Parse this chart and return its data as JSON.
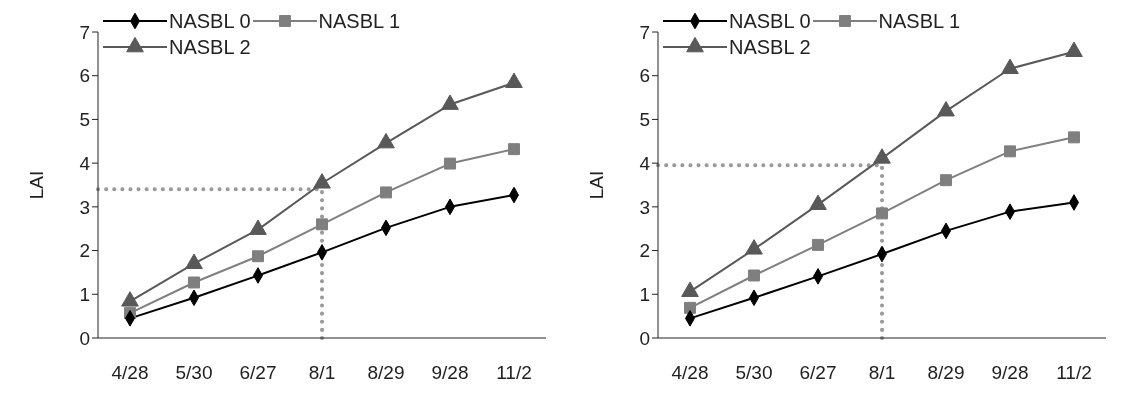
{
  "chart_data": [
    {
      "type": "line",
      "ylabel": "LAI",
      "categories": [
        "4/28",
        "5/30",
        "6/27",
        "8/1",
        "8/29",
        "9/28",
        "11/2"
      ],
      "series": [
        {
          "name": "NASBL 0",
          "color": "#000000",
          "marker": "diamond",
          "values": [
            0.45,
            0.92,
            1.43,
            1.96,
            2.52,
            3.0,
            3.27
          ]
        },
        {
          "name": "NASBL 1",
          "color": "#7f7f7f",
          "marker": "square",
          "values": [
            0.57,
            1.27,
            1.87,
            2.6,
            3.33,
            3.99,
            4.32
          ]
        },
        {
          "name": "NASBL 2",
          "color": "#595959",
          "marker": "triangle",
          "values": [
            0.84,
            1.7,
            2.48,
            3.54,
            4.46,
            5.34,
            5.84
          ]
        }
      ],
      "ylim": [
        0,
        7
      ],
      "yticks": [
        0,
        1,
        2,
        3,
        4,
        5,
        6,
        7
      ],
      "grid": false,
      "legend": "top left",
      "ref_lines": [
        {
          "axis": "y",
          "value": 3.4,
          "color": "#999999",
          "line_style": "dotted"
        },
        {
          "axis": "x",
          "value": "8/1",
          "color": "#999999",
          "line_style": "dotted"
        }
      ]
    },
    {
      "type": "line",
      "ylabel": "LAI",
      "categories": [
        "4/28",
        "5/30",
        "6/27",
        "8/1",
        "8/29",
        "9/28",
        "11/2"
      ],
      "series": [
        {
          "name": "NASBL 0",
          "color": "#000000",
          "marker": "diamond",
          "values": [
            0.45,
            0.92,
            1.41,
            1.92,
            2.45,
            2.89,
            3.1
          ]
        },
        {
          "name": "NASBL 1",
          "color": "#7f7f7f",
          "marker": "square",
          "values": [
            0.69,
            1.43,
            2.13,
            2.85,
            3.61,
            4.27,
            4.59
          ]
        },
        {
          "name": "NASBL 2",
          "color": "#595959",
          "marker": "triangle",
          "values": [
            1.06,
            2.03,
            3.05,
            4.11,
            5.19,
            6.16,
            6.55
          ]
        }
      ],
      "ylim": [
        0,
        7
      ],
      "yticks": [
        0,
        1,
        2,
        3,
        4,
        5,
        6,
        7
      ],
      "grid": false,
      "legend": "top left",
      "ref_lines": [
        {
          "axis": "y",
          "value": 3.95,
          "color": "#999999",
          "line_style": "dotted"
        },
        {
          "axis": "x",
          "value": "8/1",
          "color": "#999999",
          "line_style": "dotted"
        }
      ]
    }
  ]
}
